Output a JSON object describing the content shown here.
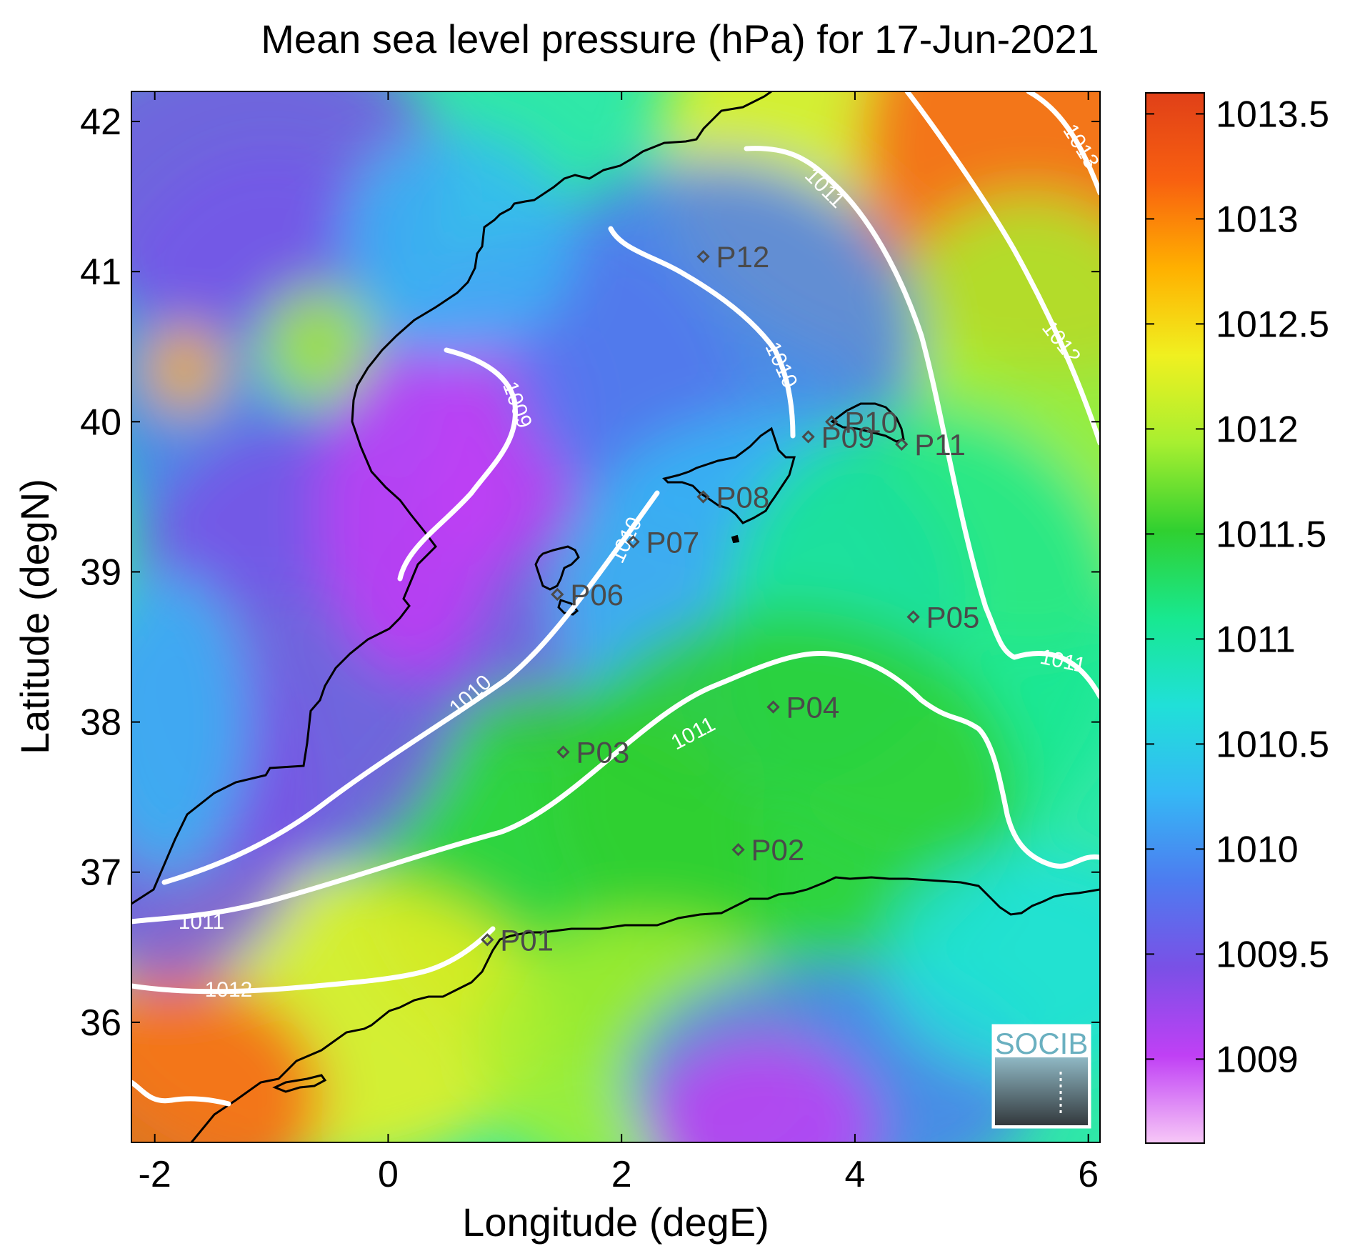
{
  "title": "Mean sea level pressure (hPa) for 17-Jun-2021",
  "xlabel": "Longitude (degE)",
  "ylabel": "Latitude (degN)",
  "logo_text": "SOCIB",
  "chart_data": {
    "type": "heatmap",
    "xlim": [
      -2.2,
      6.1
    ],
    "ylim": [
      35.2,
      42.2
    ],
    "x_ticks": [
      -2,
      0,
      2,
      4,
      6
    ],
    "y_ticks": [
      36,
      37,
      38,
      39,
      40,
      41,
      42
    ],
    "colorbar": {
      "min": 1008.6,
      "max": 1013.6,
      "ticks": [
        "1009",
        "1009.5",
        "1010",
        "1010.5",
        "1011",
        "1011.5",
        "1012",
        "1012.5",
        "1013",
        "1013.5"
      ],
      "colors": [
        "#f7c8f7",
        "#c040f5",
        "#7a50e6",
        "#4d7cf0",
        "#35b8f5",
        "#20e0d8",
        "#18e890",
        "#30d030",
        "#a8ef30",
        "#f0f020",
        "#ffb000",
        "#f86010",
        "#e04018"
      ]
    },
    "contour_levels": [
      "1009",
      "1010",
      "1011",
      "1012",
      "1013"
    ],
    "stations": [
      {
        "name": "P01",
        "lon": 0.85,
        "lat": 36.55
      },
      {
        "name": "P02",
        "lon": 3.0,
        "lat": 37.15
      },
      {
        "name": "P03",
        "lon": 1.5,
        "lat": 37.8
      },
      {
        "name": "P04",
        "lon": 3.3,
        "lat": 38.1
      },
      {
        "name": "P05",
        "lon": 4.5,
        "lat": 38.7
      },
      {
        "name": "P06",
        "lon": 1.45,
        "lat": 38.85
      },
      {
        "name": "P07",
        "lon": 2.1,
        "lat": 39.2
      },
      {
        "name": "P08",
        "lon": 2.7,
        "lat": 39.5
      },
      {
        "name": "P09",
        "lon": 3.6,
        "lat": 39.9
      },
      {
        "name": "P10",
        "lon": 3.8,
        "lat": 40.0
      },
      {
        "name": "P11",
        "lon": 4.4,
        "lat": 39.85
      },
      {
        "name": "P12",
        "lon": 2.7,
        "lat": 41.1
      }
    ]
  }
}
